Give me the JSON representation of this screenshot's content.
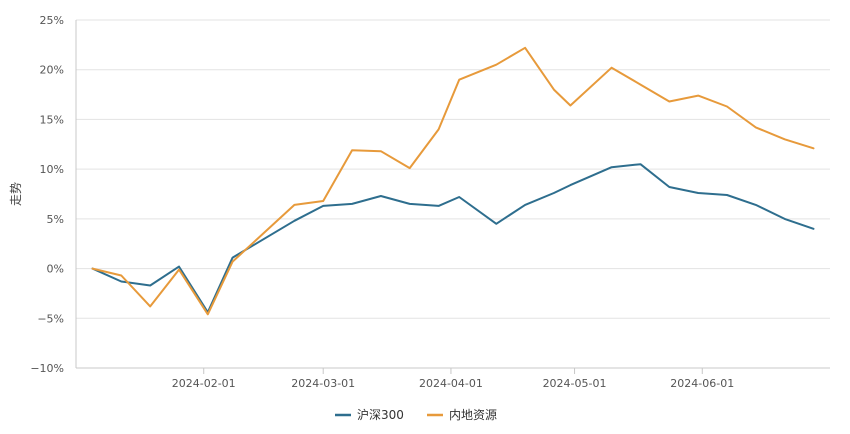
{
  "chart_data": {
    "type": "line",
    "title": "",
    "xlabel": "",
    "ylabel": "走势",
    "ylim": [
      -10,
      25
    ],
    "y_ticks": [
      -10,
      -5,
      0,
      5,
      10,
      15,
      20,
      25
    ],
    "y_tick_labels": [
      "−10%",
      "−5%",
      "0%",
      "5%",
      "10%",
      "15%",
      "20%",
      "25%"
    ],
    "x_tick_labels": [
      "2024-02-01",
      "2024-03-01",
      "2024-04-01",
      "2024-05-01",
      "2024-06-01"
    ],
    "x_ticks": [
      "2024-02-01",
      "2024-03-01",
      "2024-04-01",
      "2024-05-01",
      "2024-06-01"
    ],
    "x": [
      "2024-01-05",
      "2024-01-12",
      "2024-01-19",
      "2024-01-26",
      "2024-02-02",
      "2024-02-08",
      "2024-02-23",
      "2024-03-01",
      "2024-03-08",
      "2024-03-15",
      "2024-03-22",
      "2024-03-29",
      "2024-04-03",
      "2024-04-12",
      "2024-04-19",
      "2024-04-26",
      "2024-04-30",
      "2024-05-10",
      "2024-05-17",
      "2024-05-24",
      "2024-05-31",
      "2024-06-07",
      "2024-06-14",
      "2024-06-21",
      "2024-06-28"
    ],
    "grid": true,
    "legend_position": "bottom-center",
    "series": [
      {
        "name": "沪深300",
        "color": "#2e6e8e",
        "values": [
          0.0,
          -1.3,
          -1.7,
          0.2,
          -4.4,
          1.1,
          4.8,
          6.3,
          6.5,
          7.3,
          6.5,
          6.3,
          7.2,
          4.5,
          6.4,
          7.6,
          8.4,
          10.2,
          10.5,
          8.2,
          7.6,
          7.4,
          6.4,
          5.0,
          4.0
        ]
      },
      {
        "name": "内地资源",
        "color": "#e79a3b",
        "values": [
          0.0,
          -0.7,
          -3.8,
          -0.1,
          -4.6,
          0.7,
          6.4,
          6.8,
          11.9,
          11.8,
          10.1,
          14.0,
          19.0,
          20.5,
          22.2,
          18.0,
          16.4,
          20.2,
          18.5,
          16.8,
          17.4,
          16.3,
          14.2,
          13.0,
          12.1
        ]
      }
    ]
  }
}
